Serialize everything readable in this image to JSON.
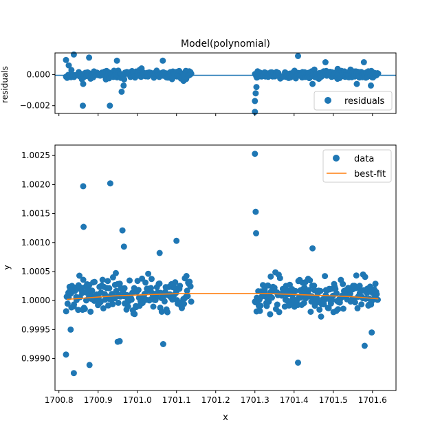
{
  "chart_data": [
    {
      "type": "scatter",
      "panel": "residuals",
      "title": "Model(polynomial)",
      "xlabel": "",
      "ylabel": "residuals",
      "xlim": [
        1700.79,
        1701.66
      ],
      "ylim": [
        -0.0025,
        0.0014
      ],
      "yticks": [
        0.0,
        -0.002
      ],
      "ytick_labels": [
        "0.000",
        "−0.002"
      ],
      "xticks": [
        1700.8,
        1700.9,
        1701.0,
        1701.1,
        1701.2,
        1701.3,
        1701.4,
        1701.5,
        1701.6
      ],
      "show_xtick_labels": false,
      "zero_line": 0.0,
      "legend": {
        "placement": "lower-right",
        "entries": [
          "residuals"
        ]
      },
      "colors": {
        "points": "#1f77b4",
        "line": "#1f77b4"
      },
      "series": [
        {
          "name": "residuals",
          "x": [
            1700.818,
            1700.825,
            1700.838,
            1700.862,
            1700.861,
            1700.877,
            1700.93,
            1700.948,
            1700.96,
            1700.965,
            1701.065,
            1701.118,
            1701.3,
            1701.3,
            1701.302,
            1701.304,
            1701.41,
            1701.447,
            1701.48,
            1701.56,
            1701.578,
            1701.596
          ],
          "y": [
            0.00095,
            0.0006,
            0.0013,
            -0.0006,
            -0.002,
            0.0011,
            -0.002,
            0.0009,
            -0.0011,
            -0.0007,
            0.0009,
            -0.0004,
            -0.0024,
            -0.0017,
            -0.0012,
            -0.0008,
            0.0012,
            -0.0006,
            0.0008,
            -0.0006,
            0.0008,
            -0.0007
          ]
        }
      ],
      "dense_bands": [
        {
          "x_start": 1700.818,
          "x_end": 1701.138,
          "count": 190,
          "spread": 0.00035,
          "seed": 11
        },
        {
          "x_start": 1701.3,
          "x_end": 1701.615,
          "count": 200,
          "spread": 0.00035,
          "seed": 23
        }
      ]
    },
    {
      "type": "scatter",
      "panel": "main",
      "title": "",
      "xlabel": "x",
      "ylabel": "y",
      "xlim": [
        1700.79,
        1701.66
      ],
      "ylim": [
        0.99845,
        1.00268
      ],
      "xticks": [
        1700.8,
        1700.9,
        1701.0,
        1701.1,
        1701.2,
        1701.3,
        1701.4,
        1701.5,
        1701.6
      ],
      "xtick_labels": [
        "1700.8",
        "1700.9",
        "1701.0",
        "1701.1",
        "1701.2",
        "1701.3",
        "1701.4",
        "1701.5",
        "1701.6"
      ],
      "yticks": [
        0.999,
        0.9995,
        1.0,
        1.0005,
        1.001,
        1.0015,
        1.002,
        1.0025
      ],
      "ytick_labels": [
        "0.9990",
        "0.9995",
        "1.0000",
        "1.0005",
        "1.0010",
        "1.0015",
        "1.0020",
        "1.0025"
      ],
      "legend": {
        "placement": "top-right",
        "entries": [
          "data",
          "best-fit"
        ]
      },
      "colors": {
        "points": "#1f77b4",
        "fit": "#ff7f0e"
      },
      "series": [
        {
          "name": "data",
          "x": [
            1700.818,
            1700.83,
            1700.838,
            1700.862,
            1700.863,
            1700.878,
            1700.931,
            1700.962,
            1700.966,
            1700.95,
            1700.955,
            1701.057,
            1701.066,
            1701.1,
            1701.3,
            1701.302,
            1701.303,
            1701.41,
            1701.447,
            1701.58,
            1701.598
          ],
          "y": [
            0.99907,
            0.9995,
            0.99875,
            1.00197,
            1.00127,
            0.99889,
            1.00202,
            1.00121,
            1.00093,
            0.99929,
            0.9993,
            1.00082,
            0.99925,
            1.00103,
            1.00253,
            1.00153,
            1.00116,
            0.99893,
            1.0009,
            0.99922,
            0.99945
          ]
        },
        {
          "name": "best-fit",
          "x": [
            1700.82,
            1700.86,
            1700.9,
            1700.94,
            1700.98,
            1701.02,
            1701.06,
            1701.1,
            1701.14,
            1701.3,
            1701.34,
            1701.38,
            1701.42,
            1701.46,
            1701.5,
            1701.54,
            1701.58,
            1701.615
          ],
          "y": [
            1.00002,
            1.00004,
            1.00006,
            1.00008,
            1.00009,
            1.0001,
            1.00011,
            1.00012,
            1.00012,
            1.00012,
            1.00012,
            1.00011,
            1.0001,
            1.00009,
            1.00008,
            1.00007,
            1.00005,
            1.00003
          ]
        }
      ],
      "dense_bands": [
        {
          "x_start": 1700.818,
          "x_end": 1701.138,
          "count": 190,
          "center": 1.0001,
          "spread": 0.00035,
          "seed": 37
        },
        {
          "x_start": 1701.3,
          "x_end": 1701.615,
          "count": 200,
          "center": 1.0001,
          "spread": 0.00035,
          "seed": 53
        }
      ]
    }
  ]
}
